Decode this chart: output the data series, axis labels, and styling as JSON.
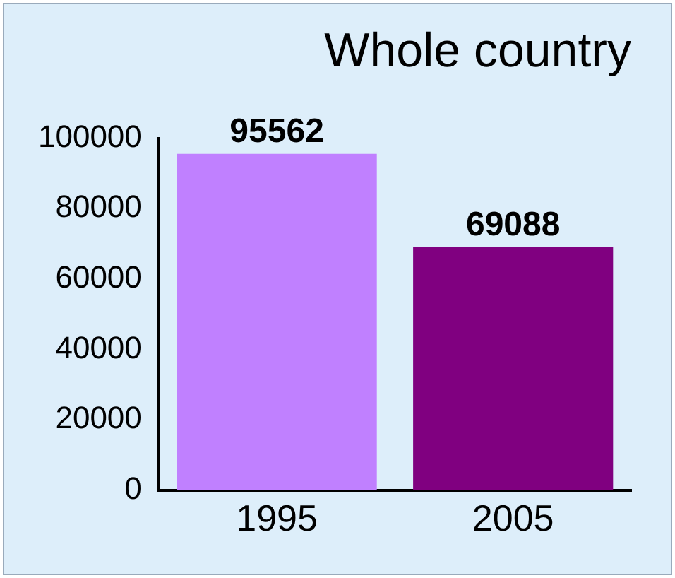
{
  "chart_data": {
    "type": "bar",
    "title": "Whole country",
    "categories": [
      "1995",
      "2005"
    ],
    "values": [
      95562,
      69088
    ],
    "colors": [
      "#c080ff",
      "#800080"
    ],
    "ylim": [
      0,
      100000
    ],
    "yticks": [
      0,
      20000,
      40000,
      60000,
      80000,
      100000
    ],
    "grid": false,
    "legend": false,
    "data_labels": true
  }
}
